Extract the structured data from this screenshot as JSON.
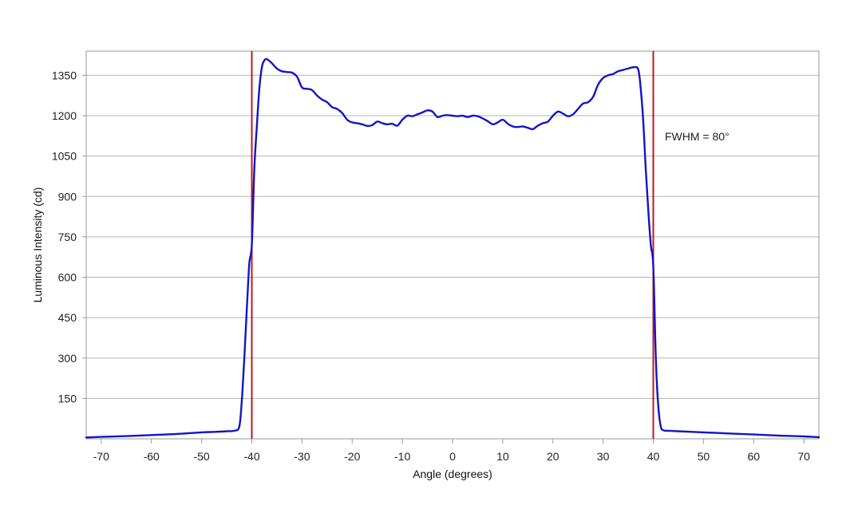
{
  "chart_data": {
    "type": "line",
    "title": "",
    "xlabel": "Angle (degrees)",
    "ylabel": "Luminous Intensity (cd)",
    "xlim": [
      -73,
      73
    ],
    "ylim": [
      0,
      1440
    ],
    "xticks": [
      -70,
      -60,
      -50,
      -40,
      -30,
      -20,
      -10,
      0,
      10,
      20,
      30,
      40,
      50,
      60,
      70
    ],
    "yticks": [
      150,
      300,
      450,
      600,
      750,
      900,
      1050,
      1200,
      1350
    ],
    "grid": "horizontal",
    "line_color": "#1414c8",
    "marker_color": "#c01818",
    "markers_x": [
      -40,
      40
    ],
    "annotation": "FWHM = 80°",
    "series": [
      {
        "x": [
          -73,
          -70,
          -65,
          -60,
          -55,
          -50,
          -47,
          -45,
          -43.5,
          -42.5,
          -42,
          -41.5,
          -41,
          -40.5,
          -40,
          -39.5,
          -39,
          -38.5,
          -38,
          -37.5,
          -37,
          -36,
          -35,
          -34,
          -33,
          -32,
          -31,
          -30,
          -29,
          -28,
          -27,
          -26,
          -25,
          -24,
          -23,
          -22,
          -21,
          -20,
          -19,
          -18,
          -17,
          -16,
          -15,
          -14,
          -13,
          -12,
          -11,
          -10,
          -9,
          -8,
          -7,
          -6,
          -5,
          -4,
          -3,
          -2,
          -1,
          0,
          1,
          2,
          3,
          4,
          5,
          6,
          7,
          8,
          9,
          10,
          11,
          12,
          13,
          14,
          15,
          16,
          17,
          18,
          19,
          20,
          21,
          22,
          23,
          24,
          25,
          26,
          27,
          28,
          29,
          30,
          31,
          32,
          33,
          34,
          35,
          36,
          37,
          37.5,
          38,
          38.5,
          39,
          39.5,
          40,
          40.5,
          41,
          41.5,
          42,
          42.5,
          43,
          45,
          50,
          55,
          60,
          65,
          70,
          73
        ],
        "y": [
          5,
          7,
          10,
          14,
          18,
          24,
          26,
          28,
          30,
          45,
          140,
          300,
          480,
          650,
          720,
          1000,
          1160,
          1300,
          1380,
          1405,
          1410,
          1395,
          1375,
          1365,
          1362,
          1360,
          1345,
          1305,
          1300,
          1295,
          1275,
          1260,
          1250,
          1232,
          1225,
          1210,
          1185,
          1175,
          1172,
          1168,
          1162,
          1165,
          1178,
          1172,
          1168,
          1170,
          1163,
          1185,
          1200,
          1198,
          1205,
          1212,
          1220,
          1215,
          1195,
          1200,
          1202,
          1200,
          1198,
          1200,
          1195,
          1200,
          1198,
          1190,
          1180,
          1168,
          1175,
          1185,
          1170,
          1160,
          1158,
          1160,
          1155,
          1150,
          1163,
          1172,
          1178,
          1200,
          1215,
          1208,
          1198,
          1205,
          1225,
          1245,
          1250,
          1270,
          1315,
          1340,
          1350,
          1355,
          1365,
          1370,
          1375,
          1380,
          1372,
          1300,
          1180,
          1000,
          850,
          720,
          640,
          300,
          120,
          45,
          32,
          30,
          30,
          28,
          24,
          20,
          16,
          12,
          9,
          6
        ]
      }
    ]
  }
}
